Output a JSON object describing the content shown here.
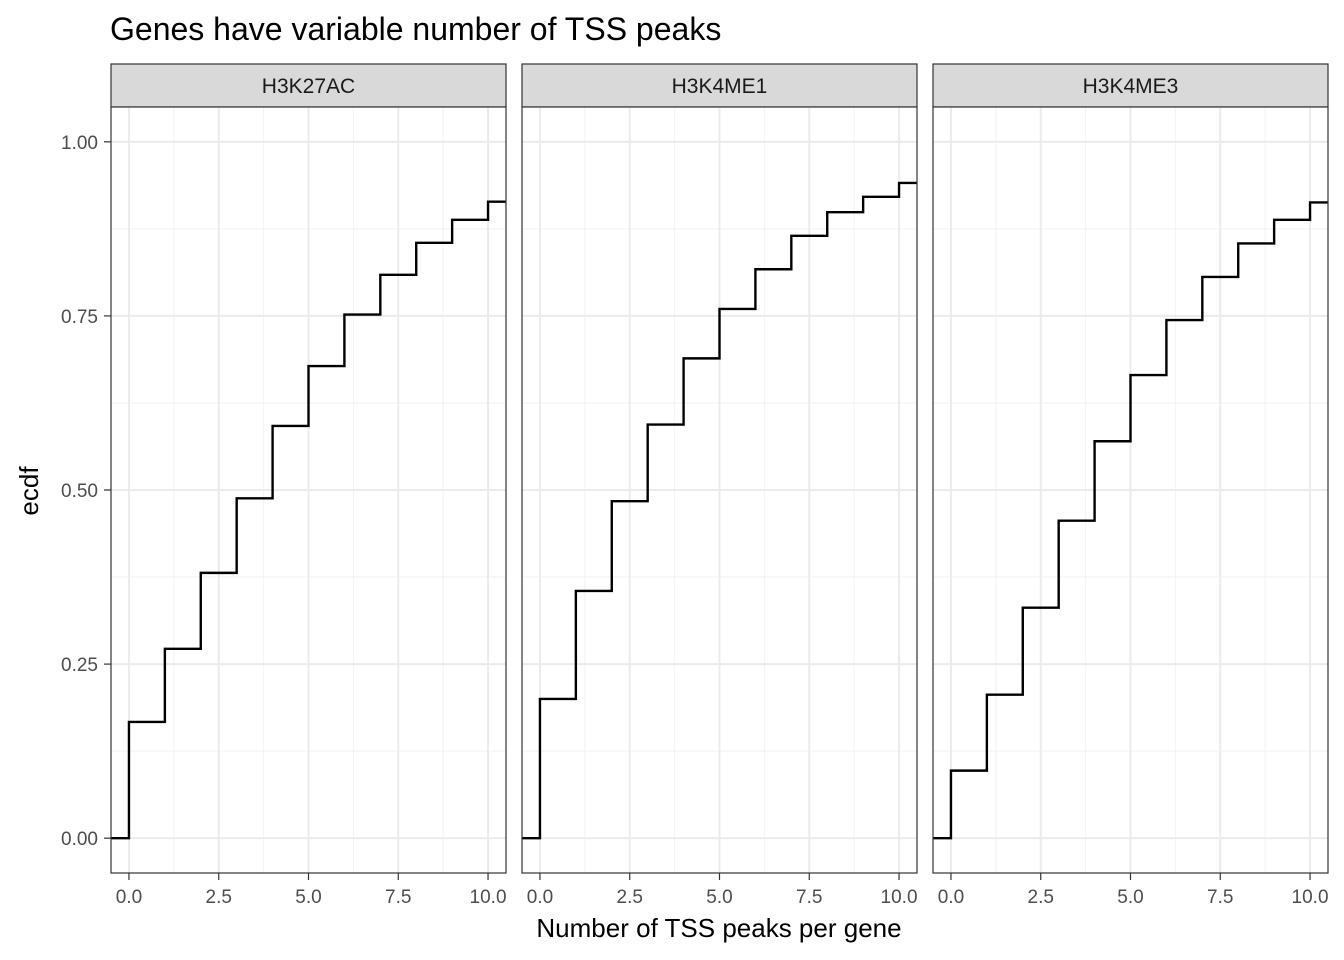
{
  "chart_data": {
    "type": "line",
    "step": true,
    "title": "Genes have variable number of TSS peaks",
    "xlabel": "Number of TSS peaks per gene",
    "ylabel": "ecdf",
    "xlim": [
      -0.5,
      10.5
    ],
    "ylim": [
      -0.05,
      1.05
    ],
    "x_ticks": [
      0,
      2.5,
      5,
      7.5,
      10
    ],
    "x_tick_labels": [
      "0.0",
      "2.5",
      "5.0",
      "7.5",
      "10.0"
    ],
    "y_ticks": [
      0,
      0.25,
      0.5,
      0.75,
      1
    ],
    "y_tick_labels": [
      "0.00",
      "0.25",
      "0.50",
      "0.75",
      "1.00"
    ],
    "grid": true,
    "theme": "bw",
    "line_color": "#000000",
    "x": [
      0,
      1,
      2,
      3,
      4,
      5,
      6,
      7,
      8,
      9,
      10
    ],
    "panels": [
      {
        "name": "H3K27AC",
        "values": [
          0.167,
          0.272,
          0.381,
          0.488,
          0.592,
          0.678,
          0.752,
          0.809,
          0.855,
          0.888,
          0.914
        ]
      },
      {
        "name": "H3K4ME1",
        "values": [
          0.2,
          0.355,
          0.484,
          0.594,
          0.689,
          0.76,
          0.817,
          0.865,
          0.899,
          0.921,
          0.941
        ]
      },
      {
        "name": "H3K4ME3",
        "values": [
          0.097,
          0.206,
          0.331,
          0.456,
          0.57,
          0.665,
          0.744,
          0.806,
          0.854,
          0.888,
          0.913
        ]
      }
    ]
  }
}
